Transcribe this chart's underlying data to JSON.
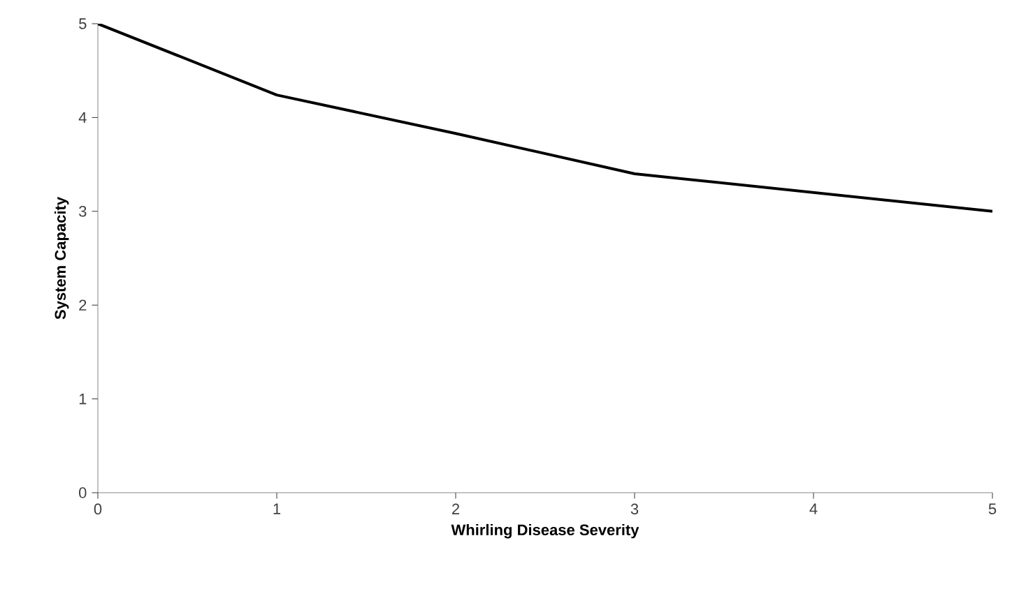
{
  "chart_data": {
    "type": "line",
    "xlabel": "Whirling Disease Severity",
    "ylabel": "System Capacity",
    "x": [
      0,
      1,
      2,
      3,
      4,
      5
    ],
    "series": [
      {
        "color": "#000000",
        "values": [
          5.0,
          4.24,
          3.83,
          3.4,
          3.2,
          3.0
        ]
      }
    ],
    "xlim": [
      0,
      5
    ],
    "ylim": [
      0,
      5
    ],
    "xticks": [
      0,
      1,
      2,
      3,
      4,
      5
    ],
    "yticks": [
      0,
      1,
      2,
      3,
      4,
      5
    ],
    "grid": false,
    "marker": "none",
    "line_style": "solid"
  }
}
